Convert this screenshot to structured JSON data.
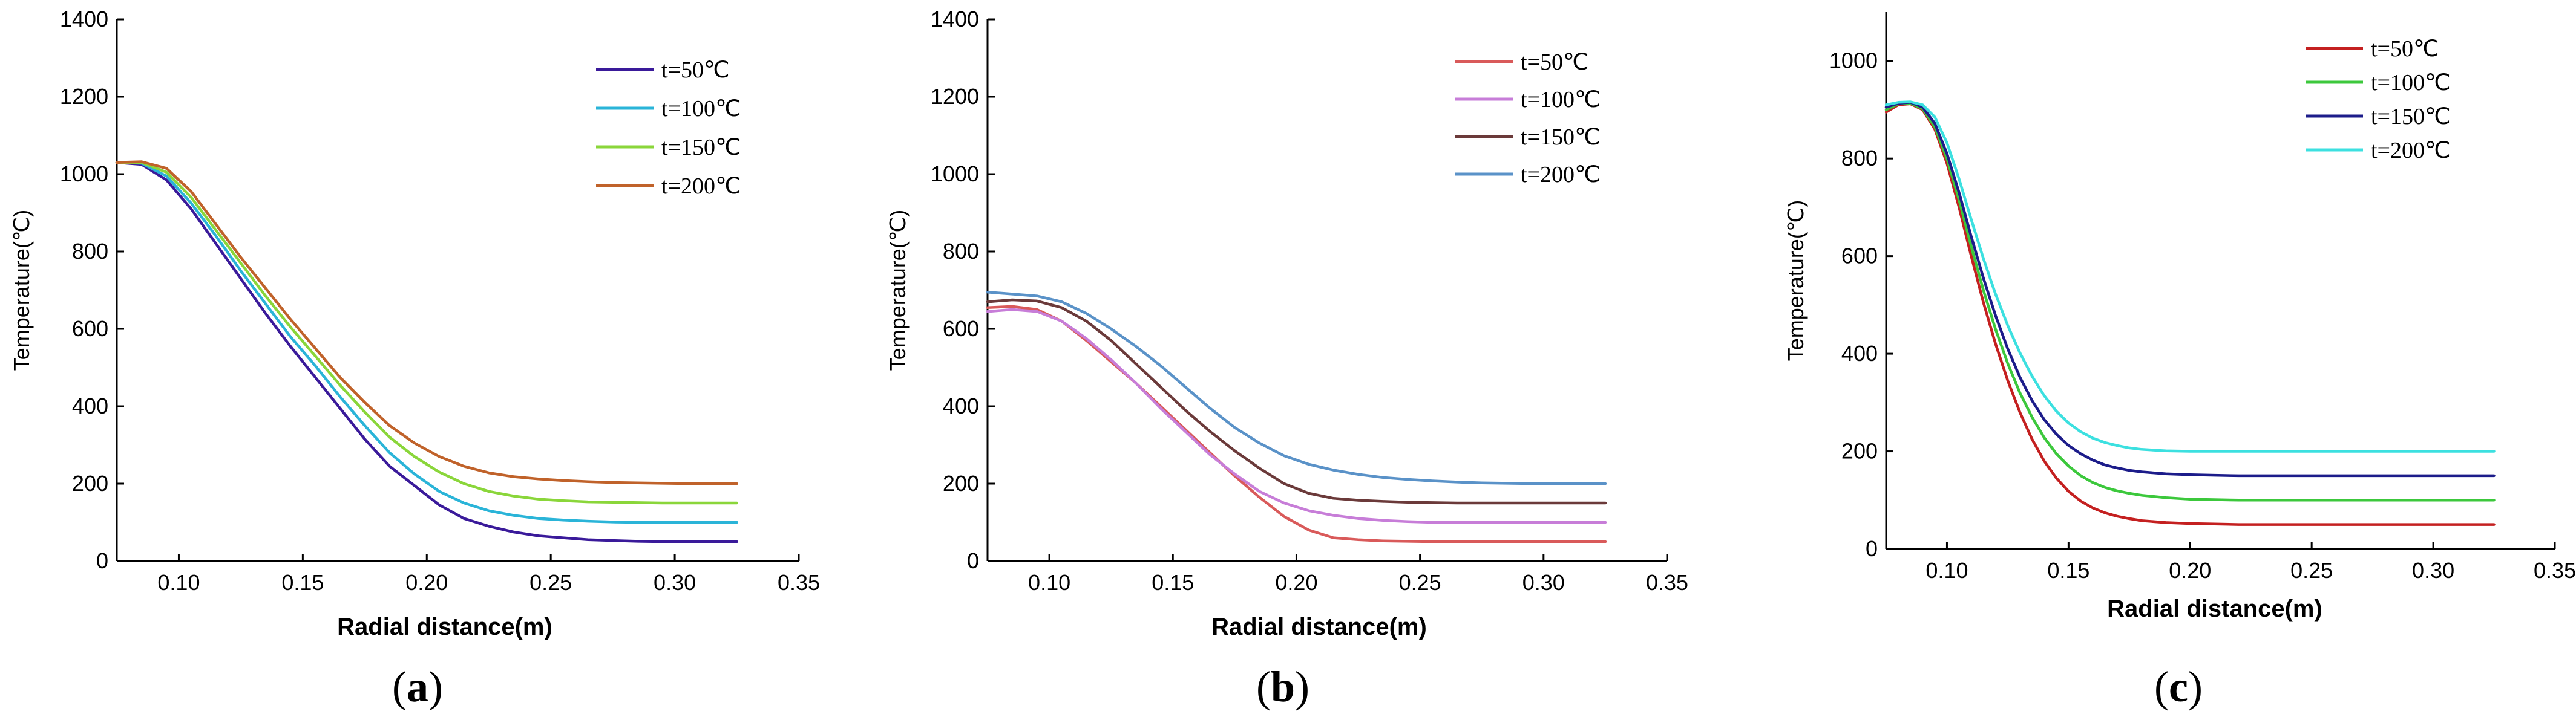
{
  "figure": {
    "panels": [
      {
        "label_open": "(",
        "label_letter": "a",
        "label_close": ")"
      },
      {
        "label_open": "(",
        "label_letter": "b",
        "label_close": ")"
      },
      {
        "label_open": "(",
        "label_letter": "c",
        "label_close": ")"
      }
    ]
  },
  "chart_data": [
    {
      "type": "line",
      "panel": "a",
      "xlabel": "Radial distance(m)",
      "ylabel": "Temperature(℃)",
      "xlim": [
        0.075,
        0.35
      ],
      "ylim": [
        0,
        1400
      ],
      "xticks": [
        0.1,
        0.15,
        0.2,
        0.25,
        0.3,
        0.35
      ],
      "xtick_labels": [
        "0.10",
        "0.15",
        "0.20",
        "0.25",
        "0.30",
        "0.35"
      ],
      "yticks": [
        0,
        200,
        400,
        600,
        800,
        1000,
        1200,
        1400
      ],
      "ytick_labels": [
        "0",
        "200",
        "400",
        "600",
        "800",
        "1000",
        "1200",
        "1400"
      ],
      "legend_position": "top-right",
      "series": [
        {
          "name": "t=50℃",
          "color": "#3a1a9a",
          "x": [
            0.075,
            0.085,
            0.095,
            0.105,
            0.115,
            0.125,
            0.135,
            0.145,
            0.155,
            0.165,
            0.175,
            0.185,
            0.195,
            0.205,
            0.215,
            0.225,
            0.235,
            0.245,
            0.255,
            0.265,
            0.275,
            0.285,
            0.295,
            0.305,
            0.315,
            0.325
          ],
          "y": [
            1030,
            1025,
            985,
            910,
            820,
            730,
            640,
            555,
            475,
            395,
            315,
            245,
            195,
            145,
            110,
            90,
            75,
            65,
            60,
            55,
            53,
            51,
            50,
            50,
            50,
            50
          ]
        },
        {
          "name": "t=100℃",
          "color": "#2ab4d8",
          "x": [
            0.075,
            0.085,
            0.095,
            0.105,
            0.115,
            0.125,
            0.135,
            0.145,
            0.155,
            0.165,
            0.175,
            0.185,
            0.195,
            0.205,
            0.215,
            0.225,
            0.235,
            0.245,
            0.255,
            0.265,
            0.275,
            0.285,
            0.295,
            0.305,
            0.315,
            0.325
          ],
          "y": [
            1030,
            1028,
            995,
            925,
            840,
            750,
            665,
            580,
            505,
            425,
            350,
            280,
            225,
            180,
            150,
            130,
            118,
            110,
            106,
            103,
            101,
            100,
            100,
            100,
            100,
            100
          ]
        },
        {
          "name": "t=150℃",
          "color": "#8ad63a",
          "x": [
            0.075,
            0.085,
            0.095,
            0.105,
            0.115,
            0.125,
            0.135,
            0.145,
            0.155,
            0.165,
            0.175,
            0.185,
            0.195,
            0.205,
            0.215,
            0.225,
            0.235,
            0.245,
            0.255,
            0.265,
            0.275,
            0.285,
            0.295,
            0.305,
            0.315,
            0.325
          ],
          "y": [
            1030,
            1030,
            1005,
            940,
            855,
            770,
            685,
            605,
            530,
            455,
            385,
            320,
            270,
            230,
            200,
            180,
            168,
            160,
            156,
            153,
            152,
            151,
            150,
            150,
            150,
            150
          ]
        },
        {
          "name": "t=200℃",
          "color": "#c0622a",
          "x": [
            0.075,
            0.085,
            0.095,
            0.105,
            0.115,
            0.125,
            0.135,
            0.145,
            0.155,
            0.165,
            0.175,
            0.185,
            0.195,
            0.205,
            0.215,
            0.225,
            0.235,
            0.245,
            0.255,
            0.265,
            0.275,
            0.285,
            0.295,
            0.305,
            0.315,
            0.325
          ],
          "y": [
            1030,
            1032,
            1015,
            955,
            870,
            785,
            705,
            625,
            550,
            475,
            410,
            350,
            305,
            270,
            245,
            228,
            218,
            212,
            208,
            205,
            203,
            202,
            201,
            200,
            200,
            200
          ]
        }
      ]
    },
    {
      "type": "line",
      "panel": "b",
      "xlabel": "Radial distance(m)",
      "ylabel": "Temperature(℃)",
      "xlim": [
        0.075,
        0.35
      ],
      "ylim": [
        0,
        1400
      ],
      "xticks": [
        0.1,
        0.15,
        0.2,
        0.25,
        0.3,
        0.35
      ],
      "xtick_labels": [
        "0.10",
        "0.15",
        "0.20",
        "0.25",
        "0.30",
        "0.35"
      ],
      "yticks": [
        0,
        200,
        400,
        600,
        800,
        1000,
        1200,
        1400
      ],
      "ytick_labels": [
        "0",
        "200",
        "400",
        "600",
        "800",
        "1000",
        "1200",
        "1400"
      ],
      "legend_position": "top-right",
      "series": [
        {
          "name": "t=50℃",
          "color": "#d95a5a",
          "x": [
            0.075,
            0.085,
            0.095,
            0.105,
            0.115,
            0.125,
            0.135,
            0.145,
            0.155,
            0.165,
            0.175,
            0.185,
            0.195,
            0.205,
            0.215,
            0.225,
            0.235,
            0.245,
            0.255,
            0.265,
            0.275,
            0.285,
            0.295,
            0.305,
            0.315,
            0.325
          ],
          "y": [
            655,
            658,
            650,
            620,
            570,
            515,
            460,
            400,
            340,
            280,
            220,
            165,
            115,
            80,
            60,
            55,
            52,
            51,
            50,
            50,
            50,
            50,
            50,
            50,
            50,
            50
          ]
        },
        {
          "name": "t=100℃",
          "color": "#c77dd8",
          "x": [
            0.075,
            0.085,
            0.095,
            0.105,
            0.115,
            0.125,
            0.135,
            0.145,
            0.155,
            0.165,
            0.175,
            0.185,
            0.195,
            0.205,
            0.215,
            0.225,
            0.235,
            0.245,
            0.255,
            0.265,
            0.275,
            0.285,
            0.295,
            0.305,
            0.315,
            0.325
          ],
          "y": [
            645,
            650,
            645,
            620,
            575,
            520,
            460,
            395,
            335,
            275,
            225,
            180,
            150,
            130,
            118,
            110,
            105,
            102,
            100,
            100,
            100,
            100,
            100,
            100,
            100,
            100
          ]
        },
        {
          "name": "t=150℃",
          "color": "#6b3a3a",
          "x": [
            0.075,
            0.085,
            0.095,
            0.105,
            0.115,
            0.125,
            0.135,
            0.145,
            0.155,
            0.165,
            0.175,
            0.185,
            0.195,
            0.205,
            0.215,
            0.225,
            0.235,
            0.245,
            0.255,
            0.265,
            0.275,
            0.285,
            0.295,
            0.305,
            0.315,
            0.325
          ],
          "y": [
            670,
            675,
            672,
            655,
            620,
            570,
            510,
            450,
            390,
            335,
            285,
            240,
            200,
            175,
            162,
            157,
            154,
            152,
            151,
            150,
            150,
            150,
            150,
            150,
            150,
            150
          ]
        },
        {
          "name": "t=200℃",
          "color": "#5a92c8",
          "x": [
            0.075,
            0.085,
            0.095,
            0.105,
            0.115,
            0.125,
            0.135,
            0.145,
            0.155,
            0.165,
            0.175,
            0.185,
            0.195,
            0.205,
            0.215,
            0.225,
            0.235,
            0.245,
            0.255,
            0.265,
            0.275,
            0.285,
            0.295,
            0.305,
            0.315,
            0.325
          ],
          "y": [
            695,
            690,
            685,
            670,
            640,
            600,
            555,
            505,
            450,
            395,
            345,
            305,
            272,
            250,
            235,
            224,
            216,
            211,
            207,
            204,
            202,
            201,
            200,
            200,
            200,
            200
          ]
        }
      ]
    },
    {
      "type": "line",
      "panel": "c",
      "xlabel": "Radial distance(m)",
      "ylabel": "Temperature(℃)",
      "xlim": [
        0.075,
        0.35
      ],
      "ylim": [
        0,
        1100
      ],
      "xticks": [
        0.1,
        0.15,
        0.2,
        0.25,
        0.3,
        0.35
      ],
      "xtick_labels": [
        "0.10",
        "0.15",
        "0.20",
        "0.25",
        "0.30",
        "0.35"
      ],
      "yticks": [
        0,
        200,
        400,
        600,
        800,
        1000
      ],
      "ytick_labels": [
        "0",
        "200",
        "400",
        "600",
        "800",
        "1000"
      ],
      "legend_position": "top-right",
      "series": [
        {
          "name": "t=50℃",
          "color": "#c42020",
          "x": [
            0.075,
            0.08,
            0.085,
            0.09,
            0.095,
            0.1,
            0.105,
            0.11,
            0.115,
            0.12,
            0.125,
            0.13,
            0.135,
            0.14,
            0.145,
            0.15,
            0.155,
            0.16,
            0.165,
            0.17,
            0.175,
            0.18,
            0.19,
            0.2,
            0.21,
            0.22,
            0.24,
            0.26,
            0.28,
            0.3,
            0.325
          ],
          "y": [
            895,
            910,
            912,
            900,
            860,
            790,
            700,
            600,
            505,
            420,
            345,
            280,
            225,
            180,
            145,
            118,
            98,
            84,
            74,
            67,
            62,
            58,
            54,
            52,
            51,
            50,
            50,
            50,
            50,
            50,
            50
          ]
        },
        {
          "name": "t=100℃",
          "color": "#3cc83c",
          "x": [
            0.075,
            0.08,
            0.085,
            0.09,
            0.095,
            0.1,
            0.105,
            0.11,
            0.115,
            0.12,
            0.125,
            0.13,
            0.135,
            0.14,
            0.145,
            0.15,
            0.155,
            0.16,
            0.165,
            0.17,
            0.175,
            0.18,
            0.19,
            0.2,
            0.21,
            0.22,
            0.24,
            0.26,
            0.28,
            0.3,
            0.325
          ],
          "y": [
            900,
            912,
            913,
            902,
            865,
            800,
            715,
            620,
            530,
            450,
            380,
            320,
            270,
            228,
            195,
            170,
            150,
            136,
            126,
            119,
            114,
            110,
            105,
            102,
            101,
            100,
            100,
            100,
            100,
            100,
            100
          ]
        },
        {
          "name": "t=150℃",
          "color": "#1c1c8a",
          "x": [
            0.075,
            0.08,
            0.085,
            0.09,
            0.095,
            0.1,
            0.105,
            0.11,
            0.115,
            0.12,
            0.125,
            0.13,
            0.135,
            0.14,
            0.145,
            0.15,
            0.155,
            0.16,
            0.165,
            0.17,
            0.175,
            0.18,
            0.19,
            0.2,
            0.21,
            0.22,
            0.24,
            0.26,
            0.28,
            0.3,
            0.325
          ],
          "y": [
            905,
            913,
            915,
            905,
            872,
            810,
            730,
            640,
            555,
            478,
            410,
            352,
            304,
            265,
            235,
            212,
            195,
            182,
            172,
            166,
            161,
            158,
            154,
            152,
            151,
            150,
            150,
            150,
            150,
            150,
            150
          ]
        },
        {
          "name": "t=200℃",
          "color": "#3ce0e0",
          "x": [
            0.075,
            0.08,
            0.085,
            0.09,
            0.095,
            0.1,
            0.105,
            0.11,
            0.115,
            0.12,
            0.125,
            0.13,
            0.135,
            0.14,
            0.145,
            0.15,
            0.155,
            0.16,
            0.165,
            0.17,
            0.175,
            0.18,
            0.19,
            0.2,
            0.21,
            0.22,
            0.24,
            0.26,
            0.28,
            0.3,
            0.325
          ],
          "y": [
            910,
            915,
            916,
            910,
            885,
            832,
            758,
            675,
            595,
            522,
            458,
            402,
            354,
            314,
            282,
            258,
            240,
            227,
            218,
            212,
            207,
            204,
            201,
            200,
            200,
            200,
            200,
            200,
            200,
            200,
            200
          ]
        }
      ]
    }
  ]
}
